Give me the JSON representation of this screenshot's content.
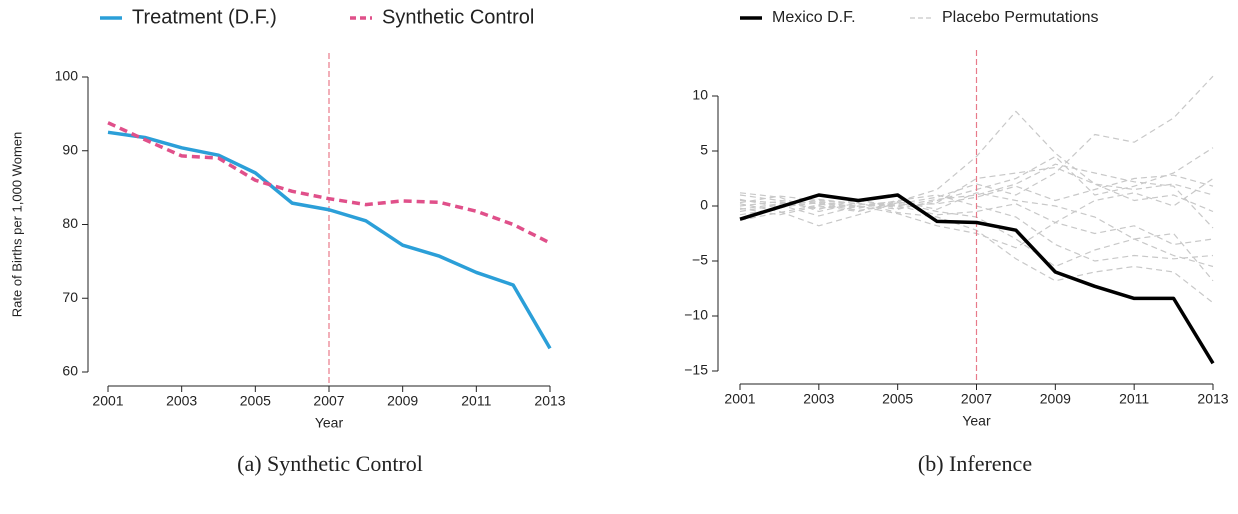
{
  "chart_data": [
    {
      "type": "line",
      "caption": "(a) Synthetic Control",
      "xlabel": "Year",
      "ylabel": "Rate of Births per 1,000 Women",
      "x": [
        2001,
        2002,
        2003,
        2004,
        2005,
        2006,
        2007,
        2008,
        2009,
        2010,
        2011,
        2012,
        2013
      ],
      "series": [
        {
          "name": "Treatment (D.F.)",
          "color": "#2b9fd8",
          "style": "solid",
          "values": [
            92.5,
            91.8,
            90.4,
            89.4,
            87.0,
            82.9,
            82.0,
            80.5,
            77.2,
            75.7,
            73.5,
            71.8,
            63.2
          ]
        },
        {
          "name": "Synthetic Control",
          "color": "#e0508a",
          "style": "dashed",
          "values": [
            93.8,
            91.5,
            89.3,
            89.0,
            86.0,
            84.5,
            83.5,
            82.7,
            83.2,
            83.0,
            81.8,
            80.0,
            77.5
          ]
        }
      ],
      "vline": 2007,
      "vline_color": "#e87a8a",
      "xlim": [
        2001,
        2013
      ],
      "xticks": [
        2001,
        2003,
        2005,
        2007,
        2009,
        2011,
        2013
      ],
      "ylim": [
        60,
        100
      ],
      "yticks": [
        60,
        70,
        80,
        90,
        100
      ],
      "legend": "top"
    },
    {
      "type": "line",
      "caption": "(b) Inference",
      "xlabel": "Year",
      "x": [
        2001,
        2002,
        2003,
        2004,
        2005,
        2006,
        2007,
        2008,
        2009,
        2010,
        2011,
        2012,
        2013
      ],
      "series": [
        {
          "name": "Mexico D.F.",
          "color": "#000000",
          "style": "solid",
          "values": [
            -1.2,
            -0.1,
            1.0,
            0.5,
            1.0,
            -1.4,
            -1.5,
            -2.2,
            -6.0,
            -7.3,
            -8.4,
            -8.4,
            -14.3
          ]
        },
        {
          "name": "Placebo Permutations",
          "color": "#c8c8c8",
          "style": "dashed",
          "lines": [
            [
              0.5,
              0.3,
              -0.2,
              0.1,
              0.4,
              1.5,
              4.5,
              8.6,
              4.8,
              2.0,
              1.5,
              2.0,
              1.0
            ],
            [
              -0.3,
              0.2,
              0.4,
              -0.1,
              0.2,
              0.8,
              2.0,
              1.0,
              3.0,
              6.5,
              5.8,
              8.0,
              11.8
            ],
            [
              1.2,
              0.8,
              -0.5,
              0.3,
              -0.6,
              -1.0,
              -2.2,
              -4.8,
              -6.8,
              -6.0,
              -5.5,
              -6.0,
              -8.8
            ],
            [
              -0.8,
              -0.2,
              0.6,
              0.2,
              -0.3,
              0.5,
              1.5,
              2.5,
              4.5,
              1.0,
              1.8,
              3.0,
              5.3
            ],
            [
              0.2,
              -0.5,
              -1.8,
              -0.8,
              0.3,
              -0.5,
              -1.0,
              -3.0,
              -5.5,
              -4.0,
              -3.0,
              -4.5,
              -5.5
            ],
            [
              1.0,
              0.5,
              0.2,
              -0.4,
              0.1,
              0.2,
              0.8,
              1.8,
              0.5,
              1.5,
              2.5,
              2.8,
              1.8
            ],
            [
              -1.3,
              -0.6,
              0.1,
              0.5,
              0.0,
              -0.8,
              -0.5,
              0.2,
              -1.5,
              -2.5,
              -1.8,
              -3.5,
              -3.0
            ],
            [
              0.0,
              0.4,
              -0.3,
              0.6,
              -0.2,
              0.3,
              2.5,
              3.0,
              3.5,
              2.0,
              0.5,
              1.0,
              -0.5
            ],
            [
              0.6,
              -0.1,
              0.3,
              -0.2,
              0.5,
              1.0,
              0.0,
              -1.0,
              -3.5,
              -5.0,
              -4.5,
              -4.8,
              -4.5
            ],
            [
              -0.5,
              0.1,
              -0.9,
              0.0,
              -0.7,
              -1.8,
              -2.5,
              -3.8,
              -1.5,
              0.5,
              1.2,
              0.0,
              2.5
            ],
            [
              0.3,
              0.9,
              0.5,
              0.2,
              0.0,
              0.6,
              1.0,
              2.0,
              3.8,
              3.0,
              2.2,
              1.8,
              -2.0
            ],
            [
              -0.2,
              -0.8,
              0.0,
              -0.5,
              0.4,
              -0.3,
              1.2,
              0.5,
              0.0,
              -1.0,
              -3.0,
              -2.5,
              -6.8
            ]
          ]
        }
      ],
      "vline": 2007,
      "vline_color": "#e87a8a",
      "xlim": [
        2001,
        2013
      ],
      "xticks": [
        2001,
        2003,
        2005,
        2007,
        2009,
        2011,
        2013
      ],
      "ylim": [
        -15,
        12
      ],
      "yticks": [
        {
          "value": -15,
          "label": "−15"
        },
        {
          "value": -10,
          "label": "−10"
        },
        {
          "value": -5,
          "label": "−5"
        },
        0,
        5,
        10
      ],
      "legend": "top"
    }
  ]
}
